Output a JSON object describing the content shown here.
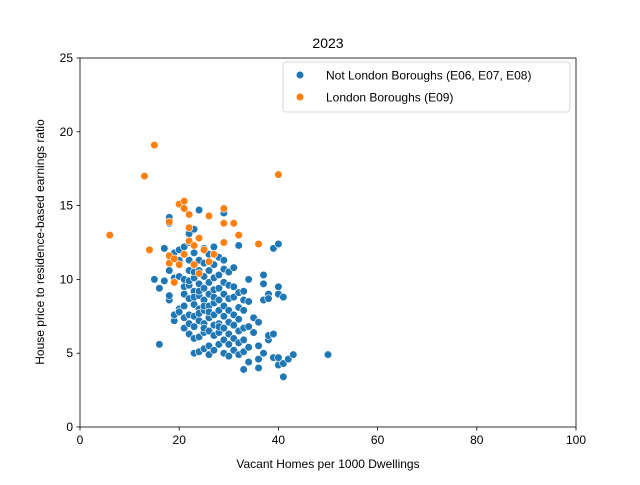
{
  "chart_data": {
    "type": "scatter",
    "title": "2023",
    "xlabel": "Vacant Homes per 1000 Dwellings",
    "ylabel": "House price to residence-based earnings ratio",
    "xlim": [
      0,
      100
    ],
    "ylim": [
      0,
      25
    ],
    "xticks": [
      0,
      20,
      40,
      60,
      80,
      100
    ],
    "yticks": [
      0,
      5,
      10,
      15,
      20,
      25
    ],
    "xtick_labels": [
      "0",
      "20",
      "40",
      "60",
      "80",
      "100"
    ],
    "ytick_labels": [
      "0",
      "5",
      "10",
      "15",
      "20",
      "25"
    ],
    "grid": false,
    "legend_position": "top-right",
    "series": [
      {
        "name": "Not London Boroughs (E06, E07, E08)",
        "color": "#1f77b4",
        "points": [
          [
            15,
            10.0
          ],
          [
            16,
            9.4
          ],
          [
            16,
            5.6
          ],
          [
            17,
            9.9
          ],
          [
            17,
            12.1
          ],
          [
            18,
            8.6
          ],
          [
            18,
            8.9
          ],
          [
            18,
            10.6
          ],
          [
            18,
            14.2
          ],
          [
            18,
            13.8
          ],
          [
            19,
            7.2
          ],
          [
            19,
            7.6
          ],
          [
            19,
            9.9
          ],
          [
            19,
            10.1
          ],
          [
            19,
            11.8
          ],
          [
            20,
            8.0
          ],
          [
            20,
            10.2
          ],
          [
            20,
            12.0
          ],
          [
            20,
            11.3
          ],
          [
            20,
            7.8
          ],
          [
            21,
            6.7
          ],
          [
            21,
            8.2
          ],
          [
            21,
            9.5
          ],
          [
            21,
            10.0
          ],
          [
            21,
            12.2
          ],
          [
            21,
            7.4
          ],
          [
            21,
            9.0
          ],
          [
            22,
            6.3
          ],
          [
            22,
            7.0
          ],
          [
            22,
            8.7
          ],
          [
            22,
            9.6
          ],
          [
            22,
            10.6
          ],
          [
            22,
            11.3
          ],
          [
            22,
            13.1
          ],
          [
            22,
            12.5
          ],
          [
            22,
            9.9
          ],
          [
            22,
            7.6
          ],
          [
            23,
            5.0
          ],
          [
            23,
            6.0
          ],
          [
            23,
            6.8
          ],
          [
            23,
            7.5
          ],
          [
            23,
            8.3
          ],
          [
            23,
            9.2
          ],
          [
            23,
            10.1
          ],
          [
            23,
            11.0
          ],
          [
            23,
            11.8
          ],
          [
            23,
            13.4
          ],
          [
            23,
            8.8
          ],
          [
            23,
            10.5
          ],
          [
            24,
            5.1
          ],
          [
            24,
            6.1
          ],
          [
            24,
            7.2
          ],
          [
            24,
            8.0
          ],
          [
            24,
            8.9
          ],
          [
            24,
            9.7
          ],
          [
            24,
            10.6
          ],
          [
            24,
            11.3
          ],
          [
            24,
            14.7
          ],
          [
            24,
            7.7
          ],
          [
            24,
            9.2
          ],
          [
            25,
            5.3
          ],
          [
            25,
            6.4
          ],
          [
            25,
            7.0
          ],
          [
            25,
            7.9
          ],
          [
            25,
            8.6
          ],
          [
            25,
            9.4
          ],
          [
            25,
            10.2
          ],
          [
            25,
            11.1
          ],
          [
            25,
            12.1
          ],
          [
            25,
            6.7
          ],
          [
            25,
            8.2
          ],
          [
            26,
            4.9
          ],
          [
            26,
            5.5
          ],
          [
            26,
            6.5
          ],
          [
            26,
            7.4
          ],
          [
            26,
            8.2
          ],
          [
            26,
            9.0
          ],
          [
            26,
            9.8
          ],
          [
            26,
            10.6
          ],
          [
            26,
            11.7
          ],
          [
            26,
            7.8
          ],
          [
            27,
            5.2
          ],
          [
            27,
            6.2
          ],
          [
            27,
            6.9
          ],
          [
            27,
            7.6
          ],
          [
            27,
            8.4
          ],
          [
            27,
            9.3
          ],
          [
            27,
            10.1
          ],
          [
            27,
            11.0
          ],
          [
            27,
            12.2
          ],
          [
            27,
            8.8
          ],
          [
            28,
            5.6
          ],
          [
            28,
            6.4
          ],
          [
            28,
            7.0
          ],
          [
            28,
            7.9
          ],
          [
            28,
            8.6
          ],
          [
            28,
            9.4
          ],
          [
            28,
            10.3
          ],
          [
            28,
            11.5
          ],
          [
            28,
            6.8
          ],
          [
            29,
            5.0
          ],
          [
            29,
            5.9
          ],
          [
            29,
            6.7
          ],
          [
            29,
            7.5
          ],
          [
            29,
            8.2
          ],
          [
            29,
            9.0
          ],
          [
            29,
            9.8
          ],
          [
            29,
            10.7
          ],
          [
            29,
            11.3
          ],
          [
            29,
            14.5
          ],
          [
            30,
            4.8
          ],
          [
            30,
            5.6
          ],
          [
            30,
            6.3
          ],
          [
            30,
            7.1
          ],
          [
            30,
            7.9
          ],
          [
            30,
            8.7
          ],
          [
            30,
            9.6
          ],
          [
            30,
            10.5
          ],
          [
            31,
            5.2
          ],
          [
            31,
            6.0
          ],
          [
            31,
            6.9
          ],
          [
            31,
            7.6
          ],
          [
            31,
            8.8
          ],
          [
            31,
            9.5
          ],
          [
            31,
            10.8
          ],
          [
            32,
            4.9
          ],
          [
            32,
            5.7
          ],
          [
            32,
            6.5
          ],
          [
            32,
            7.3
          ],
          [
            32,
            8.1
          ],
          [
            32,
            9.1
          ],
          [
            32,
            12.3
          ],
          [
            33,
            3.9
          ],
          [
            33,
            5.1
          ],
          [
            33,
            5.9
          ],
          [
            33,
            6.7
          ],
          [
            33,
            7.9
          ],
          [
            33,
            8.6
          ],
          [
            33,
            9.2
          ],
          [
            34,
            4.4
          ],
          [
            34,
            5.4
          ],
          [
            34,
            6.8
          ],
          [
            34,
            8.5
          ],
          [
            34,
            10.0
          ],
          [
            35,
            6.4
          ],
          [
            35,
            7.4
          ],
          [
            36,
            4.0
          ],
          [
            36,
            4.6
          ],
          [
            36,
            5.5
          ],
          [
            36,
            7.1
          ],
          [
            37,
            5.0
          ],
          [
            37,
            9.7
          ],
          [
            37,
            10.3
          ],
          [
            37,
            8.6
          ],
          [
            38,
            5.9
          ],
          [
            38,
            6.2
          ],
          [
            38,
            9.0
          ],
          [
            38,
            8.7
          ],
          [
            39,
            4.7
          ],
          [
            39,
            6.3
          ],
          [
            39,
            12.1
          ],
          [
            40,
            4.2
          ],
          [
            40,
            4.7
          ],
          [
            40,
            9.5
          ],
          [
            40,
            9.0
          ],
          [
            40,
            12.4
          ],
          [
            41,
            3.4
          ],
          [
            41,
            4.3
          ],
          [
            41,
            8.8
          ],
          [
            42,
            4.6
          ],
          [
            43,
            4.9
          ],
          [
            50,
            4.9
          ]
        ]
      },
      {
        "name": "London Boroughs (E09)",
        "color": "#ff7f0e",
        "points": [
          [
            6,
            13.0
          ],
          [
            13,
            17.0
          ],
          [
            14,
            12.0
          ],
          [
            15,
            19.1
          ],
          [
            18,
            13.9
          ],
          [
            18,
            11.6
          ],
          [
            18,
            11.1
          ],
          [
            19,
            9.8
          ],
          [
            19,
            11.4
          ],
          [
            20,
            15.1
          ],
          [
            20,
            11.0
          ],
          [
            21,
            15.3
          ],
          [
            21,
            14.8
          ],
          [
            21,
            11.7
          ],
          [
            22,
            14.4
          ],
          [
            22,
            13.5
          ],
          [
            22,
            12.6
          ],
          [
            23,
            12.3
          ],
          [
            23,
            11.0
          ],
          [
            24,
            12.8
          ],
          [
            24,
            10.4
          ],
          [
            25,
            12.0
          ],
          [
            26,
            14.3
          ],
          [
            26,
            11.2
          ],
          [
            27,
            11.7
          ],
          [
            29,
            14.8
          ],
          [
            29,
            13.8
          ],
          [
            29,
            12.5
          ],
          [
            31,
            13.8
          ],
          [
            32,
            13.0
          ],
          [
            36,
            12.4
          ],
          [
            40,
            17.1
          ]
        ]
      }
    ]
  }
}
